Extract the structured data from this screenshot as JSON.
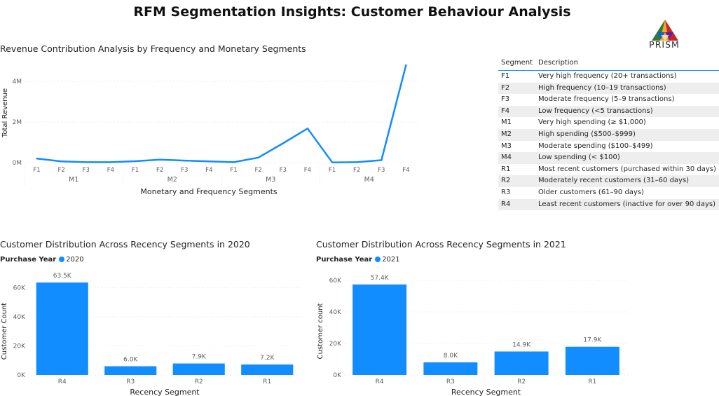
{
  "page": {
    "title": "RFM Segmentation Insights: Customer Behaviour Analysis",
    "logo_text": "PRISM"
  },
  "colors": {
    "accent": "#118DFF",
    "grid": "#e6e6e6",
    "axis_text": "#605E5C"
  },
  "line_chart": {
    "title": "Revenue Contribution Analysis by Frequency and Monetary Segments"
  },
  "bar_2020": {
    "title": "Customer Distribution Across Recency Segments in 2020",
    "legend_title": "Purchase Year",
    "legend_item": "2020"
  },
  "bar_2021": {
    "title": "Customer Distribution Across Recency Segments in 2021",
    "legend_title": "Purchase Year",
    "legend_item": "2021"
  },
  "segment_table": {
    "headers": [
      "Segment",
      "Description"
    ],
    "rows": [
      {
        "segment": "F1",
        "description": "Very high frequency (20+ transactions)"
      },
      {
        "segment": "F2",
        "description": "High frequency (10–19 transactions)"
      },
      {
        "segment": "F3",
        "description": "Moderate frequency (5–9 transactions)"
      },
      {
        "segment": "F4",
        "description": "Low frequency (<5 transactions)"
      },
      {
        "segment": "M1",
        "description": "Very high spending (≥ $1,000)"
      },
      {
        "segment": "M2",
        "description": "High spending ($500–$999)"
      },
      {
        "segment": "M3",
        "description": "Moderate spending ($100–$499)"
      },
      {
        "segment": "M4",
        "description": "Low spending (< $100)"
      },
      {
        "segment": "R1",
        "description": "Most recent customers (purchased within 30 days)"
      },
      {
        "segment": "R2",
        "description": "Moderately recent customers (31–60 days)"
      },
      {
        "segment": "R3",
        "description": "Older customers (61–90 days)"
      },
      {
        "segment": "R4",
        "description": "Least recent customers (inactive for over 90 days)"
      }
    ]
  },
  "chart_data": [
    {
      "type": "line",
      "title": "Revenue Contribution Analysis by Frequency and Monetary Segments",
      "xlabel": "Monetary and Frequency Segments",
      "ylabel": "Total Revenue",
      "groups": [
        "M1",
        "M2",
        "M3",
        "M4"
      ],
      "sub_categories": [
        "F1",
        "F2",
        "F3",
        "F4"
      ],
      "x": [
        "F1",
        "F2",
        "F3",
        "F4",
        "F1",
        "F2",
        "F3",
        "F4",
        "F1",
        "F2",
        "F3",
        "F4",
        "F1",
        "F2",
        "F3",
        "F4"
      ],
      "values": [
        200000,
        60000,
        20000,
        20000,
        70000,
        150000,
        100000,
        60000,
        20000,
        250000,
        950000,
        1680000,
        10000,
        20000,
        120000,
        4800000
      ],
      "yticks": [
        0,
        2000000,
        4000000
      ],
      "ytick_labels": [
        "0M",
        "2M",
        "4M"
      ],
      "ylim": [
        0,
        4900000
      ],
      "grid": true
    },
    {
      "type": "bar",
      "title": "Customer Distribution Across Recency Segments in 2020",
      "xlabel": "Recency Segment",
      "ylabel": "Customer Count",
      "categories": [
        "R4",
        "R3",
        "R2",
        "R1"
      ],
      "values": [
        63500,
        6000,
        7900,
        7200
      ],
      "labels": [
        "63.5K",
        "6.0K",
        "7.9K",
        "7.2K"
      ],
      "yticks": [
        0,
        20000,
        40000,
        60000
      ],
      "ytick_labels": [
        "0K",
        "20K",
        "40K",
        "60K"
      ],
      "ylim": [
        0,
        65000
      ],
      "legend": [
        "2020"
      ],
      "grid": true
    },
    {
      "type": "bar",
      "title": "Customer Distribution Across Recency Segments in 2021",
      "xlabel": "Recency Segment",
      "ylabel": "Customer count",
      "categories": [
        "R4",
        "R3",
        "R2",
        "R1"
      ],
      "values": [
        57400,
        8000,
        14900,
        17900
      ],
      "labels": [
        "57.4K",
        "8.0K",
        "14.9K",
        "17.9K"
      ],
      "yticks": [
        0,
        20000,
        40000,
        60000
      ],
      "ytick_labels": [
        "0K",
        "20K",
        "40K",
        "60K"
      ],
      "ylim": [
        0,
        60000
      ],
      "legend": [
        "2021"
      ],
      "grid": true
    }
  ]
}
